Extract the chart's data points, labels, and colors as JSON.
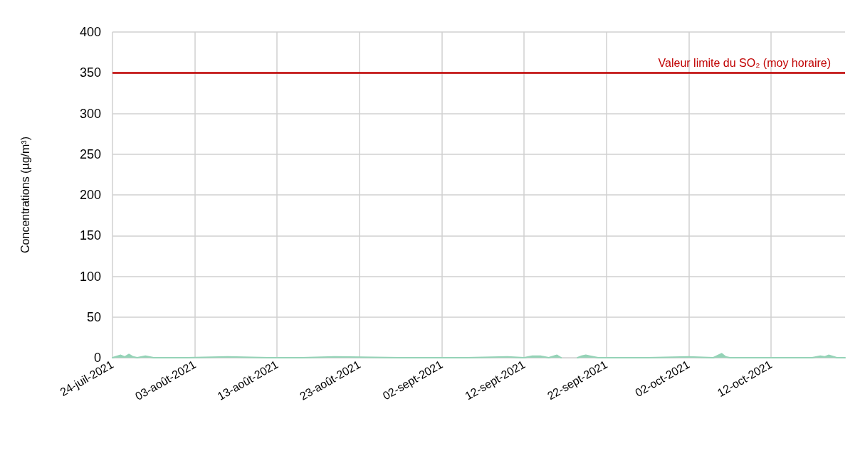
{
  "chart_data": {
    "type": "area",
    "ylabel": "Concentrations (µg/m³)",
    "x": [
      "2021-07-24",
      "2021-07-25",
      "2021-07-25T12:00",
      "2021-07-26",
      "2021-07-26T12:00",
      "2021-07-27",
      "2021-07-28",
      "2021-07-29",
      "2021-08-02",
      "2021-08-07",
      "2021-08-12",
      "2021-08-16",
      "2021-08-20",
      "2021-08-28",
      "2021-09-05",
      "2021-09-10",
      "2021-09-12",
      "2021-09-13",
      "2021-09-14",
      "2021-09-15",
      "2021-09-16",
      "2021-09-16T12:00",
      "2021-09-17",
      "2021-09-17T12:00",
      "2021-09-18",
      "2021-09-18T12:00",
      "2021-09-19",
      "2021-09-19T12:00",
      "2021-09-20",
      "2021-09-21",
      "2021-09-27",
      "2021-10-02",
      "2021-10-05",
      "2021-10-06",
      "2021-10-06T12:00",
      "2021-10-07",
      "2021-10-12",
      "2021-10-17",
      "2021-10-18",
      "2021-10-18T12:00",
      "2021-10-19",
      "2021-10-20",
      "2021-10-21"
    ],
    "series": [
      {
        "color": "#95d3b7",
        "values": [
          0,
          3,
          1,
          4,
          1,
          0,
          2,
          0,
          0,
          1,
          0,
          0,
          1,
          0,
          0,
          1,
          0,
          2,
          2,
          0,
          3,
          0,
          null,
          null,
          null,
          0,
          2,
          3,
          2,
          0,
          0,
          1,
          0,
          5,
          1,
          0,
          0,
          0,
          2,
          1,
          3,
          0,
          0
        ]
      }
    ],
    "xlim": [
      "2021-07-24",
      "2021-10-21"
    ],
    "xticks": [
      {
        "value": "2021-07-24",
        "label": "24-juil-2021"
      },
      {
        "value": "2021-08-03",
        "label": "03-août-2021"
      },
      {
        "value": "2021-08-13",
        "label": "13-août-2021"
      },
      {
        "value": "2021-08-23",
        "label": "23-août-2021"
      },
      {
        "value": "2021-09-02",
        "label": "02-sept-2021"
      },
      {
        "value": "2021-09-12",
        "label": "12-sept-2021"
      },
      {
        "value": "2021-09-22",
        "label": "22-sept-2021"
      },
      {
        "value": "2021-10-02",
        "label": "02-oct-2021"
      },
      {
        "value": "2021-10-12",
        "label": "12-oct-2021"
      }
    ],
    "ylim": [
      0,
      400
    ],
    "yticks": [
      0,
      50,
      100,
      150,
      200,
      250,
      300,
      350,
      400
    ],
    "ref_lines": [
      {
        "axis": "y",
        "value": 350,
        "label": "Valeur limite du SO₂ (moy horaire)",
        "color": "#c00000"
      }
    ],
    "grid": true,
    "marker": "none",
    "line_style": "solid"
  }
}
